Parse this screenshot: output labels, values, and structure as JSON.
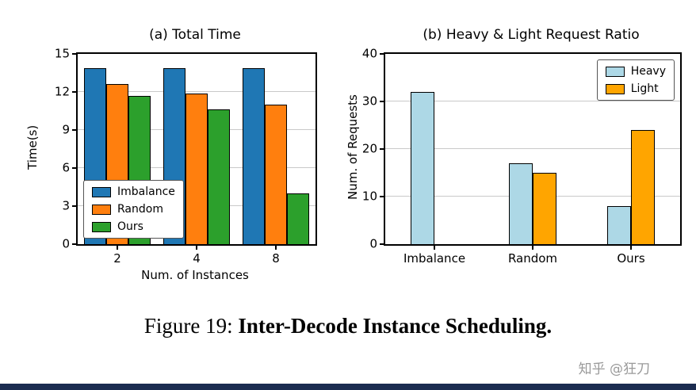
{
  "figure": {
    "caption_prefix": "Figure 19: ",
    "caption_bold": "Inter-Decode Instance Scheduling.",
    "watermark": "知乎 @狂刀",
    "bottom_bar_color": "#1b2c50"
  },
  "chart_data": [
    {
      "type": "bar",
      "title": "(a) Total Time",
      "xlabel": "Num. of Instances",
      "ylabel": "Time(s)",
      "categories": [
        "2",
        "4",
        "8"
      ],
      "series": [
        {
          "name": "Imbalance",
          "color": "#1f77b4",
          "values": [
            13.9,
            13.9,
            13.9
          ]
        },
        {
          "name": "Random",
          "color": "#ff7f0e",
          "values": [
            12.6,
            11.9,
            11.0
          ]
        },
        {
          "name": "Ours",
          "color": "#2ca02c",
          "values": [
            11.7,
            10.6,
            4.0
          ]
        }
      ],
      "ylim": [
        0,
        15
      ],
      "yticks": [
        0,
        3,
        6,
        9,
        12,
        15
      ],
      "grid": true,
      "legend_position": "lower-left"
    },
    {
      "type": "bar",
      "title": "(b) Heavy & Light Request Ratio",
      "xlabel": "",
      "ylabel": "Num. of Requests",
      "categories": [
        "Imbalance",
        "Random",
        "Ours"
      ],
      "series": [
        {
          "name": "Heavy",
          "color": "#add8e6",
          "values": [
            32,
            17,
            8
          ]
        },
        {
          "name": "Light",
          "color": "#ffa500",
          "values": [
            0,
            15,
            24
          ]
        }
      ],
      "ylim": [
        0,
        40
      ],
      "yticks": [
        0,
        10,
        20,
        30,
        40
      ],
      "grid": true,
      "legend_position": "upper-right"
    }
  ]
}
